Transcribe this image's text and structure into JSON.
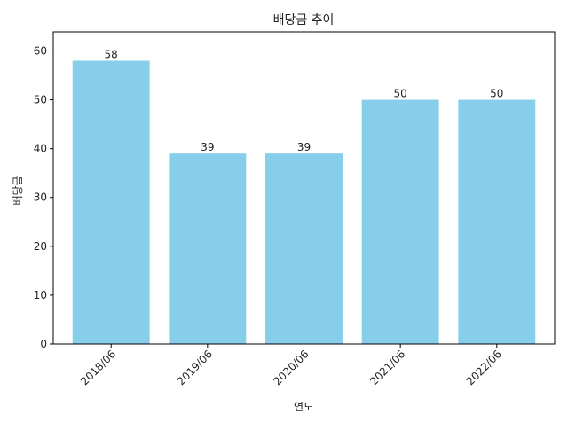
{
  "chart_data": {
    "type": "bar",
    "title": "배당금 추이",
    "xlabel": "연도",
    "ylabel": "배당금",
    "categories": [
      "2018/06",
      "2019/06",
      "2020/06",
      "2021/06",
      "2022/06"
    ],
    "values": [
      58,
      39,
      39,
      50,
      50
    ],
    "value_labels": [
      "58",
      "39",
      "39",
      "50",
      "50"
    ],
    "y_ticks": [
      0,
      10,
      20,
      30,
      40,
      50,
      60
    ],
    "ylim": [
      0,
      63.9
    ],
    "x_tick_rotation_deg": 45,
    "grid": false,
    "legend": "none",
    "bar_color": "#87CEEB",
    "axis_color": "#000000"
  }
}
